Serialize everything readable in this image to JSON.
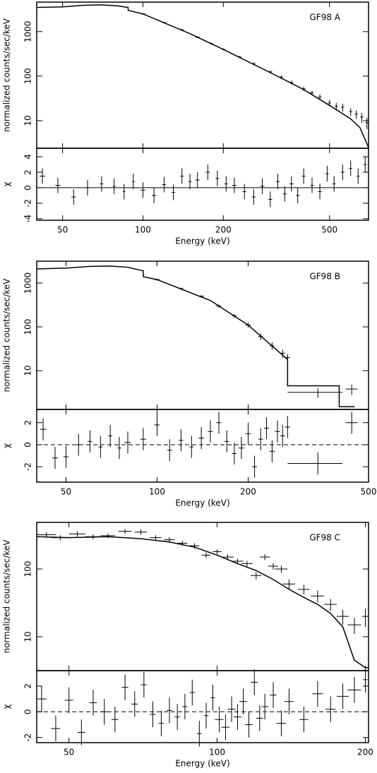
{
  "chart_data": [
    {
      "type": "errorbar",
      "label": "GF98 A",
      "ylabel": "normalized counts/sec/keV",
      "log_x": true,
      "log_y": true,
      "xlim": [
        40,
        700
      ],
      "ylim": [
        2.4,
        4600
      ],
      "xticks": [
        50,
        100,
        200,
        500
      ],
      "yticks": [
        10,
        100,
        1000
      ],
      "series": [
        {
          "style": "step",
          "x": [
            40,
            50,
            60,
            70,
            80,
            88,
            88,
            100,
            150,
            200,
            300,
            400,
            500,
            600,
            650,
            700
          ],
          "values": [
            3500,
            3600,
            3900,
            4000,
            3800,
            3500,
            3000,
            2500,
            900,
            400,
            120,
            50,
            22,
            11,
            7,
            2.5
          ]
        },
        {
          "style": "points",
          "x": [
            100,
            120,
            140,
            160,
            180,
            200,
            230,
            260,
            300,
            330,
            360,
            400,
            430,
            460,
            500,
            530,
            560,
            600,
            630,
            660,
            690
          ],
          "x_errors": [
            2,
            2,
            2,
            3,
            3,
            3,
            4,
            4,
            5,
            5,
            6,
            6,
            6,
            7,
            7,
            7,
            8,
            8,
            8,
            9,
            9
          ],
          "values": [
            2500,
            1600,
            1100,
            750,
            540,
            400,
            270,
            190,
            125,
            95,
            72,
            52,
            42,
            34,
            25,
            21,
            20,
            16,
            14,
            12,
            9
          ],
          "errors": [
            100,
            70,
            50,
            35,
            25,
            20,
            15,
            12,
            9,
            8,
            7,
            6,
            5,
            5,
            4,
            4,
            4,
            3,
            3,
            3,
            2.5
          ]
        }
      ]
    },
    {
      "type": "errorbar",
      "ylabel": "χ",
      "xlabel": "Energy (keV)",
      "log_x": true,
      "log_y": false,
      "xlim": [
        40,
        700
      ],
      "ylim": [
        -4.2,
        5.1
      ],
      "xticks": [
        50,
        100,
        200,
        500
      ],
      "yticks": [
        -4,
        -2,
        0,
        2,
        4
      ],
      "reference": {
        "value": 0,
        "style": "solid"
      },
      "series": [
        {
          "style": "points",
          "x": [
            42,
            48,
            55,
            62,
            70,
            78,
            85,
            92,
            100,
            110,
            120,
            130,
            140,
            150,
            160,
            175,
            190,
            205,
            220,
            240,
            260,
            280,
            300,
            320,
            340,
            360,
            380,
            400,
            430,
            460,
            490,
            520,
            560,
            600,
            640,
            680
          ],
          "x_errors": [
            1,
            1,
            1,
            1,
            1,
            1,
            1,
            1,
            2,
            2,
            2,
            2,
            2,
            2,
            3,
            3,
            3,
            3,
            4,
            4,
            4,
            5,
            5,
            5,
            5,
            6,
            6,
            6,
            6,
            7,
            7,
            7,
            8,
            8,
            8,
            9
          ],
          "values": [
            1.5,
            0.3,
            -1.2,
            0,
            0.5,
            0.2,
            -0.5,
            0.8,
            -0.3,
            -1,
            0.4,
            -0.6,
            1.5,
            0.8,
            1,
            2,
            1.2,
            0.5,
            0.3,
            -0.5,
            -1.2,
            0.2,
            -1.5,
            0.8,
            -0.8,
            0.5,
            -1,
            1.5,
            0.3,
            -0.5,
            1.8,
            0.5,
            2,
            2.5,
            1.5,
            3
          ],
          "errors": [
            1,
            1,
            1,
            1,
            1,
            1,
            1,
            1,
            1,
            1,
            1,
            1,
            1,
            1,
            1,
            1,
            1,
            1,
            1,
            1,
            1,
            1,
            1,
            1,
            1,
            1,
            1,
            1,
            1,
            1,
            1,
            1,
            1,
            1,
            1,
            1
          ]
        }
      ]
    },
    {
      "type": "errorbar",
      "label": "GF98 B",
      "ylabel": "normalized counts/sec/keV",
      "log_x": true,
      "log_y": true,
      "xlim": [
        40,
        500
      ],
      "ylim": [
        1.3,
        3160
      ],
      "xticks": [
        50,
        100,
        200,
        500
      ],
      "yticks": [
        10,
        100,
        1000
      ],
      "series": [
        {
          "style": "step",
          "x": [
            40,
            50,
            60,
            70,
            80,
            90,
            90,
            100,
            150,
            200,
            270,
            270,
            400,
            400,
            450
          ],
          "values": [
            2100,
            2200,
            2400,
            2450,
            2300,
            1900,
            1400,
            1200,
            400,
            110,
            18,
            4.5,
            4.5,
            1.5,
            1.5
          ]
        },
        {
          "style": "points",
          "x": [
            100,
            120,
            140,
            160,
            180,
            200,
            220,
            240,
            260,
            270,
            340,
            440
          ],
          "x_errors": [
            2,
            2,
            3,
            3,
            3,
            4,
            4,
            4,
            5,
            5,
            70,
            20
          ],
          "values": [
            1200,
            750,
            500,
            300,
            180,
            110,
            60,
            37,
            25,
            20,
            3.2,
            3.8
          ],
          "errors": [
            60,
            40,
            30,
            25,
            18,
            14,
            10,
            7,
            5,
            4,
            0.8,
            1
          ]
        }
      ]
    },
    {
      "type": "errorbar",
      "ylabel": "χ",
      "xlabel": "Energy (keV)",
      "log_x": true,
      "log_y": false,
      "xlim": [
        40,
        500
      ],
      "ylim": [
        -3.4,
        3.2
      ],
      "xticks": [
        50,
        100,
        200,
        500
      ],
      "yticks": [
        -2,
        0,
        2
      ],
      "reference": {
        "value": 0,
        "style": "dashed"
      },
      "series": [
        {
          "style": "points",
          "x": [
            42,
            46,
            50,
            55,
            60,
            65,
            70,
            75,
            80,
            90,
            100,
            110,
            120,
            130,
            140,
            150,
            160,
            170,
            180,
            190,
            200,
            210,
            220,
            230,
            240,
            250,
            260,
            270,
            340,
            440
          ],
          "x_errors": [
            1,
            1,
            1,
            1,
            1,
            1,
            1,
            1,
            2,
            2,
            2,
            2,
            2,
            2,
            3,
            3,
            3,
            3,
            3,
            4,
            4,
            4,
            4,
            4,
            5,
            5,
            5,
            5,
            70,
            20
          ],
          "values": [
            1.4,
            -1.2,
            -1.1,
            0,
            0.3,
            -0.2,
            0.8,
            -0.3,
            0.2,
            0.5,
            1.8,
            -0.5,
            0.4,
            -0.2,
            0.6,
            1.2,
            2,
            0.3,
            -0.8,
            -0.3,
            1,
            -2,
            0.5,
            1.5,
            -0.6,
            1.2,
            0.8,
            1.6,
            -1.7,
            2
          ],
          "errors": [
            1,
            1,
            1,
            1,
            1,
            1,
            1,
            1,
            1,
            1,
            1,
            1,
            1,
            1,
            1,
            1,
            1,
            1,
            1,
            1,
            1,
            1,
            1,
            1,
            1,
            1,
            1,
            1,
            1,
            1
          ]
        }
      ]
    },
    {
      "type": "errorbar",
      "label": "GF98 C",
      "ylabel": "normalized counts/sec/keV",
      "log_x": true,
      "log_y": true,
      "xlim": [
        43,
        203
      ],
      "ylim": [
        3.16,
        487
      ],
      "xticks": [
        50,
        100,
        200
      ],
      "yticks": [
        10,
        100
      ],
      "series": [
        {
          "style": "step",
          "x": [
            43,
            50,
            60,
            70,
            80,
            90,
            100,
            110,
            120,
            130,
            140,
            150,
            160,
            170,
            180,
            190,
            200,
            203
          ],
          "values": [
            300,
            290,
            300,
            280,
            250,
            210,
            160,
            120,
            95,
            70,
            50,
            38,
            30,
            22,
            14,
            4.5,
            3.5,
            3.5
          ]
        },
        {
          "style": "points",
          "x": [
            45,
            48,
            52,
            56,
            60,
            65,
            70,
            75,
            80,
            85,
            90,
            95,
            100,
            105,
            110,
            115,
            120,
            125,
            130,
            135,
            140,
            150,
            160,
            170,
            180,
            190,
            200
          ],
          "x_errors": [
            2,
            2,
            2,
            2,
            2,
            2,
            2,
            2,
            2,
            2,
            2,
            2,
            2,
            3,
            3,
            3,
            3,
            3,
            3,
            4,
            4,
            4,
            5,
            5,
            5,
            6,
            3
          ],
          "values": [
            320,
            290,
            330,
            300,
            310,
            360,
            350,
            290,
            270,
            240,
            220,
            160,
            180,
            150,
            130,
            120,
            80,
            150,
            110,
            100,
            60,
            50,
            40,
            30,
            20,
            15,
            20
          ],
          "errors": [
            30,
            25,
            30,
            25,
            25,
            30,
            30,
            25,
            25,
            20,
            20,
            15,
            15,
            15,
            12,
            12,
            10,
            15,
            12,
            12,
            10,
            8,
            8,
            6,
            5,
            4,
            6
          ]
        }
      ]
    },
    {
      "type": "errorbar",
      "ylabel": "χ",
      "xlabel": "Energy (keV)",
      "log_x": true,
      "log_y": false,
      "xlim": [
        43,
        203
      ],
      "ylim": [
        -2.4,
        3.2
      ],
      "xticks": [
        50,
        100,
        200
      ],
      "yticks": [
        -2,
        0,
        2
      ],
      "reference": {
        "value": 0,
        "style": "dashed"
      },
      "series": [
        {
          "style": "points",
          "x": [
            44,
            47,
            50,
            53,
            56,
            59,
            62,
            65,
            68,
            71,
            74,
            77,
            80,
            83,
            86,
            89,
            92,
            95,
            98,
            101,
            104,
            107,
            110,
            113,
            116,
            119,
            122,
            125,
            130,
            135,
            140,
            150,
            160,
            170,
            180,
            190,
            200
          ],
          "x_errors": [
            1,
            1,
            1,
            1,
            1,
            1,
            1,
            1,
            1,
            1,
            1,
            1,
            1,
            1,
            1,
            1,
            1,
            1,
            1,
            2,
            2,
            2,
            2,
            2,
            2,
            2,
            2,
            2,
            2,
            3,
            3,
            3,
            4,
            4,
            5,
            6,
            2
          ],
          "values": [
            1,
            -1.3,
            0.9,
            -1.6,
            0.7,
            0,
            -0.6,
            1.9,
            0.6,
            2.1,
            -0.2,
            -0.9,
            0.1,
            -0.4,
            0.4,
            1.5,
            -1.7,
            -0.3,
            1.1,
            -0.6,
            -1.2,
            0.2,
            -0.4,
            0.8,
            -1,
            2.3,
            -0.5,
            0.4,
            1.3,
            -0.9,
            0.8,
            -0.6,
            1.4,
            0.2,
            1.2,
            1.7,
            2.5
          ],
          "errors": [
            1,
            1,
            1,
            1,
            1,
            1,
            1,
            1,
            1,
            1,
            1,
            1,
            1,
            1,
            1,
            1,
            1,
            1,
            1,
            1,
            1,
            1,
            1,
            1,
            1,
            1,
            1,
            1,
            1,
            1,
            1,
            1,
            1,
            1,
            1,
            1,
            1
          ]
        }
      ]
    }
  ]
}
